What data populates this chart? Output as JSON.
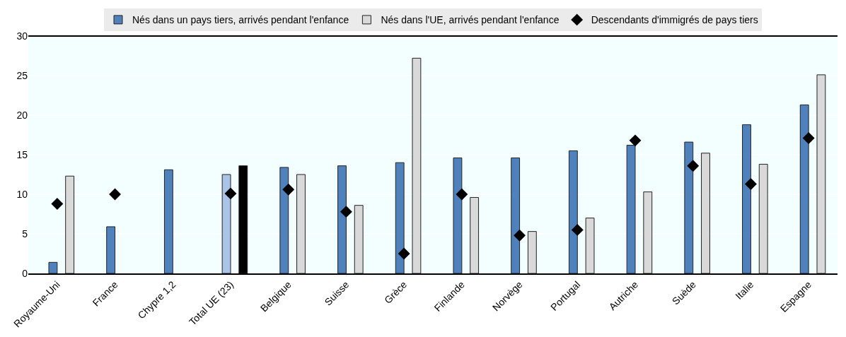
{
  "chart_data": {
    "type": "bar",
    "categories": [
      "Royaume-Uni",
      "France",
      "Chypre 1,2",
      "Total UE (23)",
      "Belgique",
      "Suisse",
      "Grèce",
      "Finlande",
      "Norvège",
      "Portugal",
      "Autriche",
      "Suède",
      "Italie",
      "Espagne"
    ],
    "series": [
      {
        "name": "Nés dans un pays tiers, arrivés pendant l'enfance",
        "color": "#4f81bd",
        "colors": [
          "#4f81bd",
          "#4f81bd",
          "#4f81bd",
          "#a9c4e6",
          "#4f81bd",
          "#4f81bd",
          "#4f81bd",
          "#4f81bd",
          "#4f81bd",
          "#4f81bd",
          "#4f81bd",
          "#4f81bd",
          "#4f81bd",
          "#4f81bd"
        ],
        "values": [
          1.4,
          5.9,
          13.1,
          12.5,
          13.4,
          13.6,
          14.0,
          14.6,
          14.6,
          15.5,
          16.2,
          16.6,
          18.8,
          21.3
        ]
      },
      {
        "name": "Nés dans l'UE, arrivés pendant l'enfance",
        "color": "#d9d9d9",
        "colors": [
          "#d9d9d9",
          "#d9d9d9",
          "#d9d9d9",
          "#000000",
          "#d9d9d9",
          "#d9d9d9",
          "#d9d9d9",
          "#d9d9d9",
          "#d9d9d9",
          "#d9d9d9",
          "#d9d9d9",
          "#d9d9d9",
          "#d9d9d9",
          "#d9d9d9"
        ],
        "values": [
          12.3,
          null,
          null,
          13.6,
          12.5,
          8.6,
          27.2,
          9.6,
          5.3,
          7.0,
          10.3,
          15.2,
          13.8,
          25.1
        ]
      },
      {
        "name": "Descendants d'immigrés de pays tiers",
        "type": "scatter",
        "marker": "diamond",
        "color": "#000000",
        "values": [
          8.8,
          10.0,
          null,
          10.1,
          10.6,
          7.8,
          2.5,
          10.0,
          4.8,
          5.5,
          16.8,
          13.6,
          11.3,
          17.1
        ]
      }
    ],
    "ylim": [
      0,
      30
    ],
    "yticks": [
      0,
      5,
      10,
      15,
      20,
      25,
      30
    ],
    "grid": true,
    "legend": "top"
  }
}
